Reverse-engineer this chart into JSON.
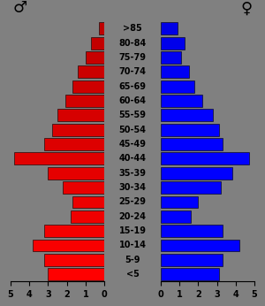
{
  "age_groups": [
    "<5",
    "5-9",
    "10-14",
    "15-19",
    "20-24",
    "25-29",
    "30-34",
    "35-39",
    "40-44",
    "45-49",
    "50-54",
    "55-59",
    "60-64",
    "65-69",
    "70-74",
    "75-79",
    "80-84",
    ">85"
  ],
  "male": [
    3.0,
    3.2,
    3.8,
    3.2,
    1.8,
    1.7,
    2.2,
    3.0,
    4.8,
    3.2,
    2.8,
    2.5,
    2.1,
    1.7,
    1.4,
    1.0,
    0.7,
    0.3
  ],
  "female": [
    3.1,
    3.3,
    4.2,
    3.3,
    1.6,
    2.0,
    3.2,
    3.8,
    4.7,
    3.3,
    3.1,
    2.8,
    2.2,
    1.8,
    1.5,
    1.1,
    1.3,
    0.9
  ],
  "background_color": "#808080",
  "xlim": 5.0,
  "male_symbol": "♂",
  "female_symbol": "♀"
}
